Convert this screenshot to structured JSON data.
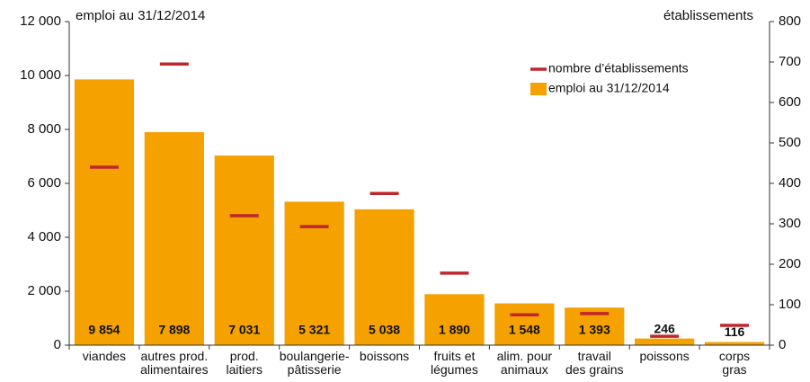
{
  "chart_data": {
    "type": "bar",
    "y_label": "emploi au 31/12/2014",
    "y2_label": "établissements",
    "categories": [
      "viandes",
      "autres prod.\nalimentaires",
      "prod.\nlaitiers",
      "boulangerie-\npâtisserie",
      "boissons",
      "fruits et\nlégumes",
      "alim. pour\nanimaux",
      "travail\ndes grains",
      "poissons",
      "corps\ngras"
    ],
    "series": [
      {
        "name": "emploi au 31/12/2014",
        "type": "bar",
        "color": "#f5a100",
        "values": [
          9854,
          7898,
          7031,
          5321,
          5038,
          1890,
          1548,
          1393,
          246,
          116
        ],
        "value_labels": [
          "9 854",
          "7 898",
          "7 031",
          "5 321",
          "5 038",
          "1 890",
          "1 548",
          "1 393",
          "246",
          "116"
        ]
      },
      {
        "name": "nombre d’établissements",
        "type": "marker",
        "axis": "y2",
        "color": "#c0272d",
        "values": [
          440,
          695,
          320,
          293,
          375,
          178,
          75,
          78,
          22,
          49
        ]
      }
    ],
    "ylim": [
      0,
      12000
    ],
    "yticks": [
      0,
      {
        "value": 2000,
        "label": "2 000"
      },
      {
        "value": 4000,
        "label": "4 000"
      },
      {
        "value": 6000,
        "label": "6 000"
      },
      {
        "value": 8000,
        "label": "8 000"
      },
      {
        "value": 10000,
        "label": "10 000"
      },
      {
        "value": 12000,
        "label": "12 000"
      }
    ],
    "y2lim": [
      0,
      800
    ],
    "y2ticks": [
      0,
      100,
      200,
      300,
      400,
      500,
      600,
      700,
      800
    ],
    "legend": "upper right"
  }
}
